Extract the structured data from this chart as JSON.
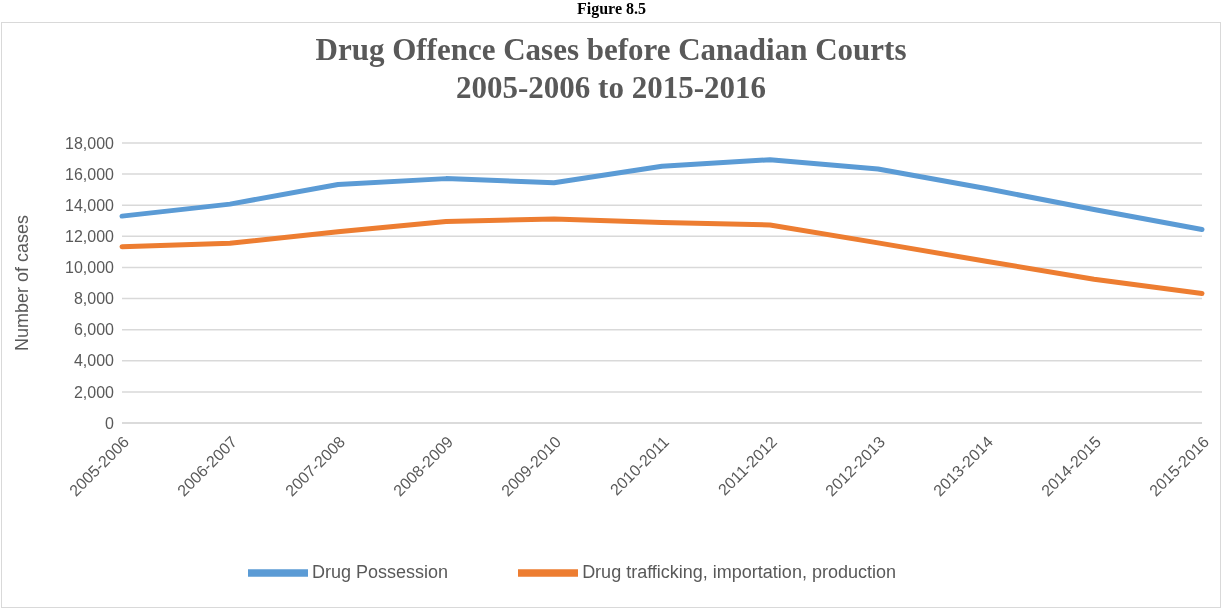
{
  "chart_data": {
    "type": "line",
    "title": "Drug Offence Cases before Canadian Courts\n2005-2006 to 2015-2016",
    "ylabel": "Number of cases",
    "annotations": [
      "Figure 8.5"
    ],
    "categories": [
      "2005-2006",
      "2006-2007",
      "2007-2008",
      "2008-2009",
      "2009-2010",
      "2010-2011",
      "2011-2012",
      "2012-2013",
      "2013-2014",
      "2014-2015",
      "2015-2016"
    ],
    "series": [
      {
        "name": "Drug Possession",
        "color": "#5b9bd5",
        "values": [
          13300,
          14070,
          15330,
          15710,
          15450,
          16500,
          16930,
          16330,
          15070,
          13730,
          12440
        ]
      },
      {
        "name": "Drug trafficking, importation, production",
        "color": "#ed7d31",
        "values": [
          11330,
          11560,
          12290,
          12960,
          13110,
          12890,
          12730,
          11580,
          10400,
          9240,
          8330
        ]
      }
    ],
    "ylim": [
      0,
      18000
    ],
    "yticks": [
      0,
      {
        "value": 2000,
        "label": "2,000"
      },
      {
        "value": 4000,
        "label": "4,000"
      },
      {
        "value": 6000,
        "label": "6,000"
      },
      {
        "value": 8000,
        "label": "8,000"
      },
      {
        "value": 10000,
        "label": "10,000"
      },
      {
        "value": 12000,
        "label": "12,000"
      },
      {
        "value": 14000,
        "label": "14,000"
      },
      {
        "value": 16000,
        "label": "16,000"
      },
      {
        "value": 18000,
        "label": "18,000"
      }
    ],
    "grid": "y",
    "legend": "bottom",
    "marker": "none",
    "line_style": "solid"
  }
}
